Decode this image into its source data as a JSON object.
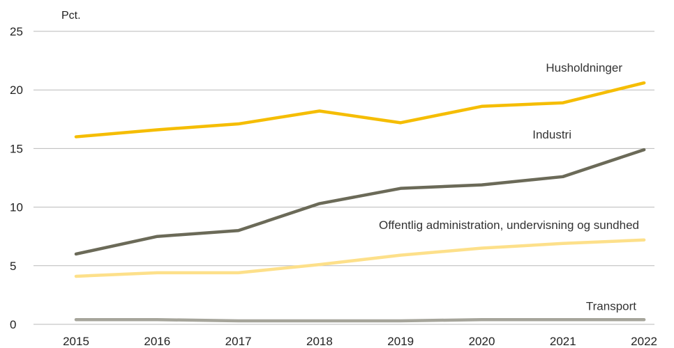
{
  "chart_data": {
    "type": "line",
    "ylabel": "Pct.",
    "ylim": [
      0,
      25
    ],
    "yticks": [
      "0",
      "5",
      "10",
      "15",
      "20",
      "25"
    ],
    "categories": [
      "2015",
      "2016",
      "2017",
      "2018",
      "2019",
      "2020",
      "2021",
      "2022"
    ],
    "grid": true,
    "series": [
      {
        "name": "Husholdninger",
        "color": "#f5bd02",
        "values": [
          16.0,
          16.6,
          17.1,
          18.2,
          17.2,
          18.6,
          18.9,
          20.6
        ]
      },
      {
        "name": "Industri",
        "color": "#6b6a58",
        "values": [
          6.0,
          7.5,
          8.0,
          10.3,
          11.6,
          11.9,
          12.6,
          14.9
        ]
      },
      {
        "name": "Offentlig administration, undervisning og sundhed",
        "color": "#fde08a",
        "values": [
          4.1,
          4.4,
          4.4,
          5.1,
          5.9,
          6.5,
          6.9,
          7.2
        ]
      },
      {
        "name": "Transport",
        "color": "#a6a59b",
        "values": [
          0.4,
          0.4,
          0.3,
          0.3,
          0.3,
          0.4,
          0.4,
          0.4
        ]
      }
    ]
  }
}
